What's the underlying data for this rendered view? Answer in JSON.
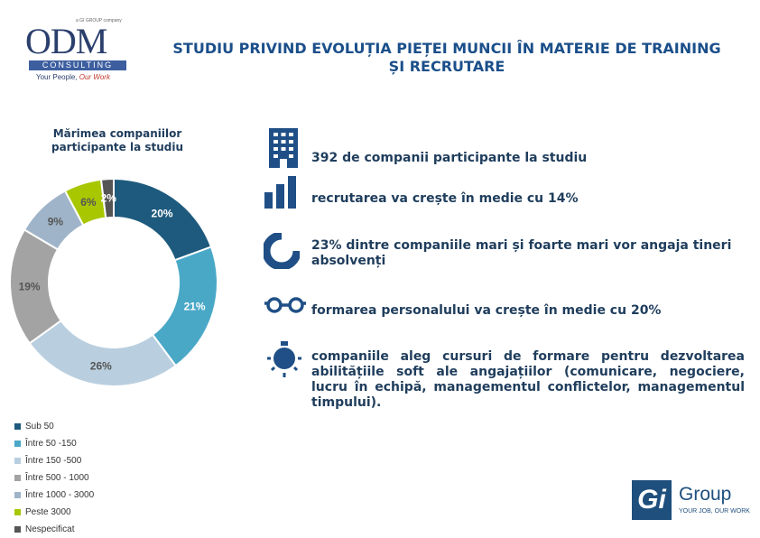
{
  "logo_odm": {
    "small": "a GI GROUP company",
    "name": "ODM",
    "consulting": "CONSULTING",
    "tagline_a": "Your People, ",
    "tagline_b": "Our Work"
  },
  "title": "STUDIU PRIVIND EVOLUȚIA PIEȚEI MUNCII ÎN MATERIE DE TRAINING ȘI RECRUTARE",
  "chart_data": {
    "type": "pie",
    "title": "Mărimea companiilor participante la studiu",
    "categories": [
      "Sub 50",
      "Între 50 -150",
      "Între 150 -500",
      "Între 500 - 1000",
      "Între 1000 - 3000",
      "Peste 3000",
      "Nespecificat"
    ],
    "values": [
      20,
      21,
      26,
      19,
      9,
      6,
      2
    ],
    "data_labels": [
      "20%",
      "21%",
      "26%",
      "19%",
      "9%",
      "6%",
      "2%"
    ],
    "colors": [
      "#1d5a7d",
      "#4aa8c7",
      "#b9cfdf",
      "#a3a3a3",
      "#9fb4c8",
      "#a9c700",
      "#555555"
    ],
    "legend_placement": "bottom-left",
    "donut": true
  },
  "facts": [
    {
      "icon": "building-icon",
      "text": "392 de companii participante la studiu"
    },
    {
      "icon": "bar-chart-icon",
      "text": "recrutarea va crește în medie cu 14%"
    },
    {
      "icon": "partial-ring-icon",
      "text": "23% dintre companiile mari și foarte mari vor angaja tineri absolvenți"
    },
    {
      "icon": "glasses-icon",
      "text": "formarea personalului va crește în medie cu 20%"
    },
    {
      "icon": "lightbulb-icon",
      "text": "companiile aleg cursuri de formare pentru dezvoltarea abilitățiile soft ale angajațiilor (comunicare, negociere, lucru în echipă, managementul conflictelor, managementul timpului)."
    }
  ],
  "logo_gi": {
    "mark": "Gi",
    "name": "Group",
    "tagline": "YOUR JOB, OUR WORK"
  }
}
